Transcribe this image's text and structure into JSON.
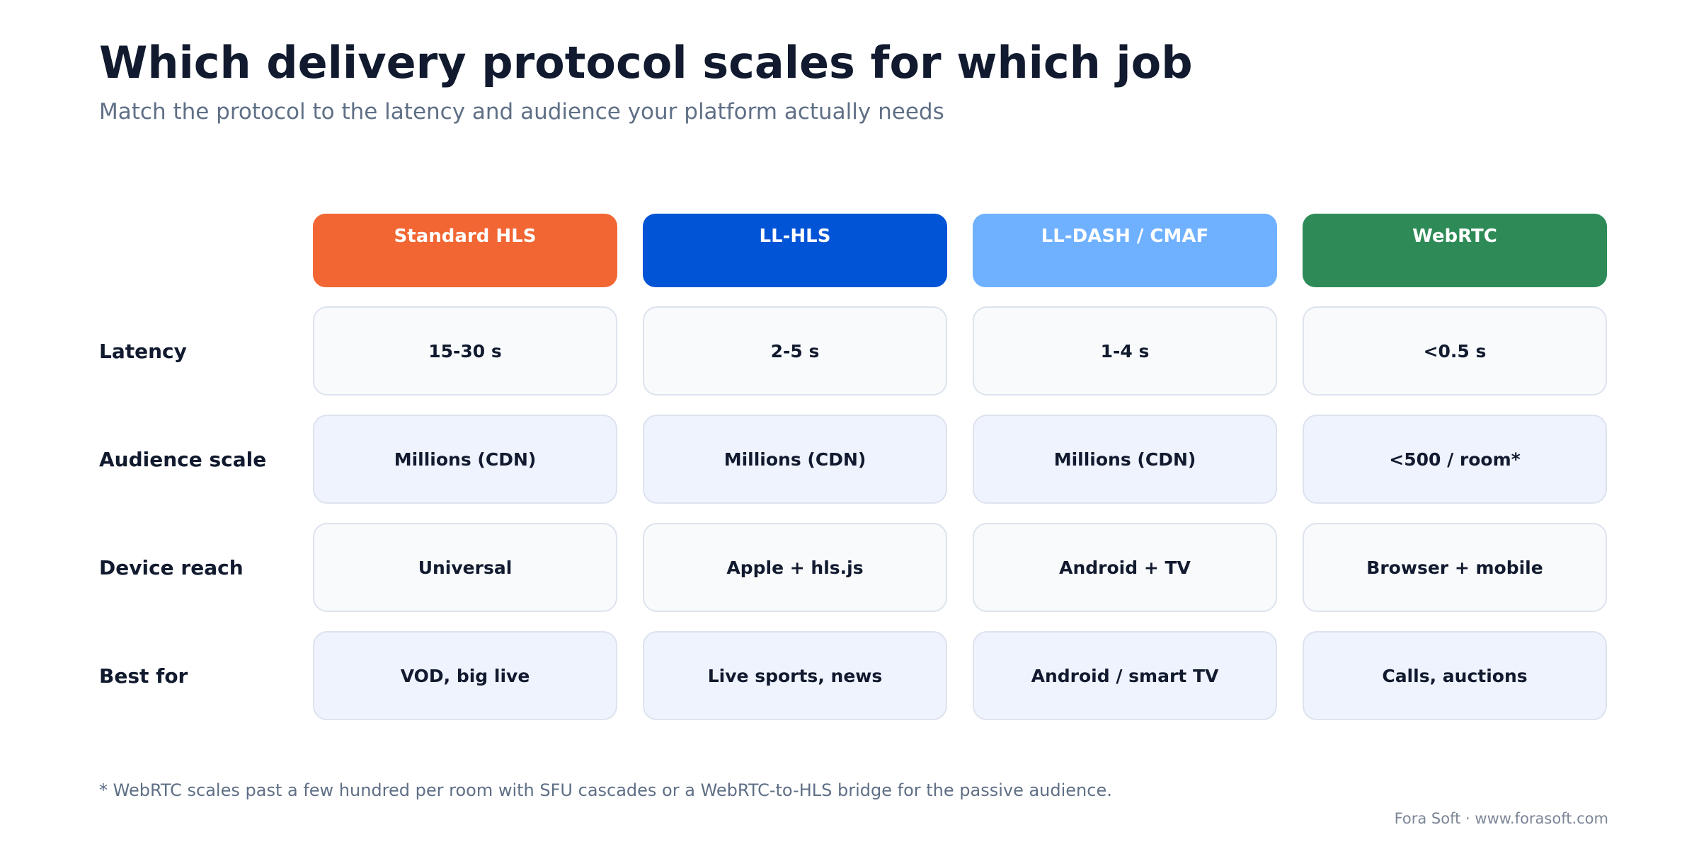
{
  "title": "Which delivery protocol scales for which job",
  "subtitle": "Match the protocol to the latency and audience your platform actually needs",
  "columns": [
    {
      "label": "Standard HLS",
      "color": "#f26633"
    },
    {
      "label": "LL-HLS",
      "color": "#0254d6"
    },
    {
      "label": "LL-DASH / CMAF",
      "color": "#6fb1ff"
    },
    {
      "label": "WebRTC",
      "color": "#2e8b57"
    }
  ],
  "rows": [
    {
      "label": "Latency",
      "cells": [
        "15-30 s",
        "2-5 s",
        "1-4 s",
        "<0.5 s"
      ]
    },
    {
      "label": "Audience scale",
      "cells": [
        "Millions (CDN)",
        "Millions (CDN)",
        "Millions (CDN)",
        "<500 / room*"
      ]
    },
    {
      "label": "Device reach",
      "cells": [
        "Universal",
        "Apple + hls.js",
        "Android + TV",
        "Browser + mobile"
      ]
    },
    {
      "label": "Best for",
      "cells": [
        "VOD, big live",
        "Live sports, news",
        "Android / smart TV",
        "Calls, auctions"
      ]
    }
  ],
  "footnote": "* WebRTC scales past a few hundred per room with SFU cascades or a WebRTC-to-HLS bridge for the passive audience.",
  "credit": "Fora Soft · www.forasoft.com"
}
